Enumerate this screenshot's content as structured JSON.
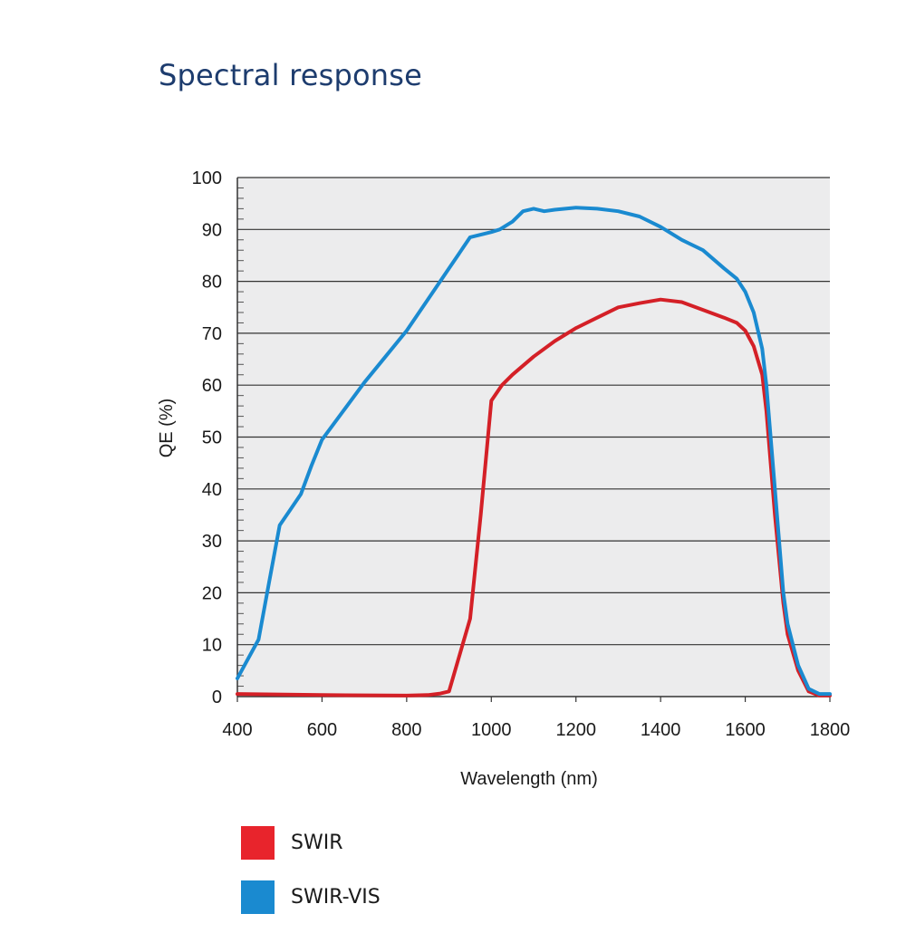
{
  "title": "Spectral response",
  "chart_data": {
    "type": "line",
    "title": "Spectral response",
    "xlabel": "Wavelength (nm)",
    "ylabel": "QE (%)",
    "xlim": [
      400,
      1800
    ],
    "ylim": [
      0,
      100
    ],
    "x_ticks": [
      400,
      600,
      800,
      1000,
      1200,
      1400,
      1600,
      1800
    ],
    "y_ticks": [
      0,
      10,
      20,
      30,
      40,
      50,
      60,
      70,
      80,
      90,
      100
    ],
    "grid": "horizontal",
    "legend_position": "bottom-left",
    "series": [
      {
        "name": "SWIR",
        "color": "#d42027",
        "x": [
          400,
          600,
          800,
          850,
          880,
          900,
          950,
          975,
          1000,
          1025,
          1050,
          1100,
          1150,
          1200,
          1250,
          1300,
          1350,
          1400,
          1450,
          1500,
          1550,
          1580,
          1600,
          1620,
          1640,
          1650,
          1670,
          1690,
          1700,
          1725,
          1750,
          1775,
          1800
        ],
        "y": [
          0.5,
          0.3,
          0.2,
          0.3,
          0.6,
          1,
          15,
          35,
          57,
          60,
          62,
          65.5,
          68.5,
          71,
          73,
          75,
          75.8,
          76.5,
          76,
          74.5,
          73,
          72,
          70.5,
          67.5,
          62,
          55,
          35,
          18,
          12,
          5,
          1,
          0.2,
          0.2
        ]
      },
      {
        "name": "SWIR-VIS",
        "color": "#1a8ad0",
        "x": [
          400,
          450,
          475,
          500,
          525,
          550,
          575,
          600,
          650,
          700,
          750,
          800,
          850,
          875,
          900,
          950,
          1000,
          1020,
          1050,
          1075,
          1100,
          1125,
          1150,
          1200,
          1250,
          1300,
          1350,
          1400,
          1450,
          1500,
          1550,
          1580,
          1600,
          1620,
          1640,
          1650,
          1670,
          1690,
          1700,
          1725,
          1750,
          1775,
          1800
        ],
        "y": [
          3.5,
          11,
          22,
          33,
          36,
          39,
          44.5,
          49.5,
          55,
          60.5,
          65.5,
          70.5,
          76.5,
          79.5,
          82.5,
          88.5,
          89.5,
          90,
          91.5,
          93.5,
          94,
          93.5,
          93.8,
          94.2,
          94,
          93.5,
          92.5,
          90.5,
          88,
          86,
          82.5,
          80.5,
          78,
          74,
          67,
          60,
          40,
          20,
          14,
          6,
          1.5,
          0.5,
          0.5
        ]
      }
    ]
  },
  "legend": {
    "items": [
      {
        "label": "SWIR",
        "color": "#e8242c"
      },
      {
        "label": "SWIR-VIS",
        "color": "#1a8ad0"
      }
    ]
  }
}
